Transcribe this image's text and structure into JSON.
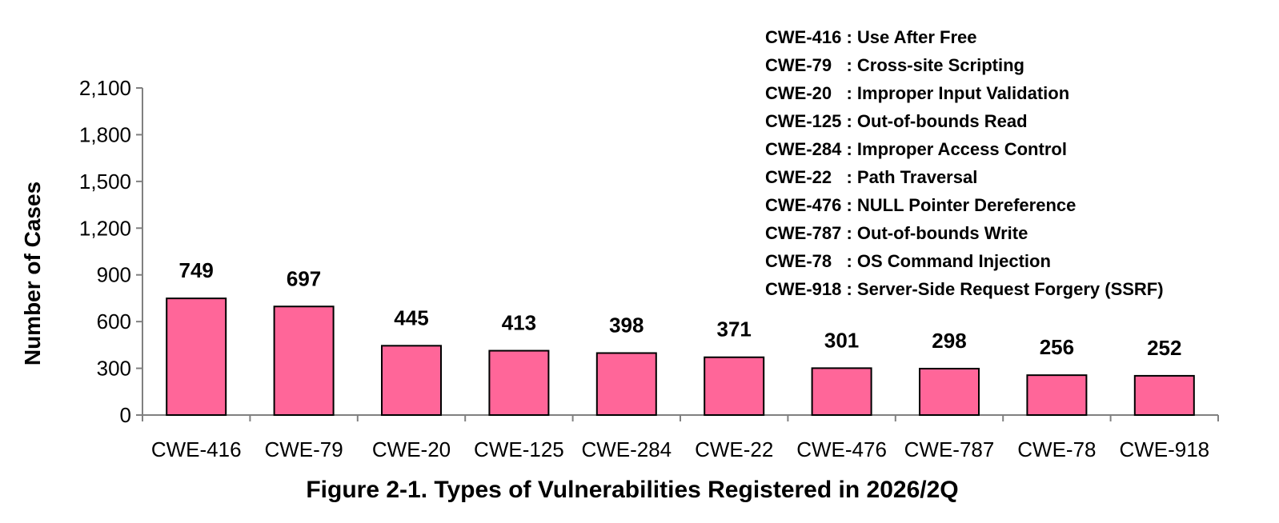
{
  "chart_data": {
    "type": "bar",
    "title": "Figure 2-1. Types of Vulnerabilities Registered in 2026/2Q",
    "xlabel": "",
    "ylabel": "Number of Cases",
    "categories": [
      "CWE-416",
      "CWE-79",
      "CWE-20",
      "CWE-125",
      "CWE-284",
      "CWE-22",
      "CWE-476",
      "CWE-787",
      "CWE-78",
      "CWE-918"
    ],
    "values": [
      749,
      697,
      445,
      413,
      398,
      371,
      301,
      298,
      256,
      252
    ],
    "data_labels": [
      "749",
      "697",
      "445",
      "413",
      "398",
      "371",
      "301",
      "298",
      "256",
      "252"
    ],
    "ylim": [
      0,
      2100
    ],
    "yticks": [
      0,
      300,
      600,
      900,
      1200,
      1500,
      1800,
      2100
    ],
    "ytick_labels": [
      "0",
      "300",
      "600",
      "900",
      "1,200",
      "1,500",
      "1,800",
      "2,100"
    ],
    "bar_color": "#ff6699",
    "bar_edge_color": "#000000",
    "axis_color": "#808080",
    "grid": false,
    "legend_placement": "top-right",
    "legend": [
      "CWE-416 : Use After Free",
      "CWE-79   : Cross-site Scripting",
      "CWE-20   : Improper Input Validation",
      "CWE-125 : Out-of-bounds Read",
      "CWE-284 : Improper Access Control",
      "CWE-22   : Path Traversal",
      "CWE-476 : NULL Pointer Dereference",
      "CWE-787 : Out-of-bounds Write",
      "CWE-78   : OS Command Injection",
      "CWE-918 : Server-Side Request Forgery (SSRF)"
    ]
  }
}
